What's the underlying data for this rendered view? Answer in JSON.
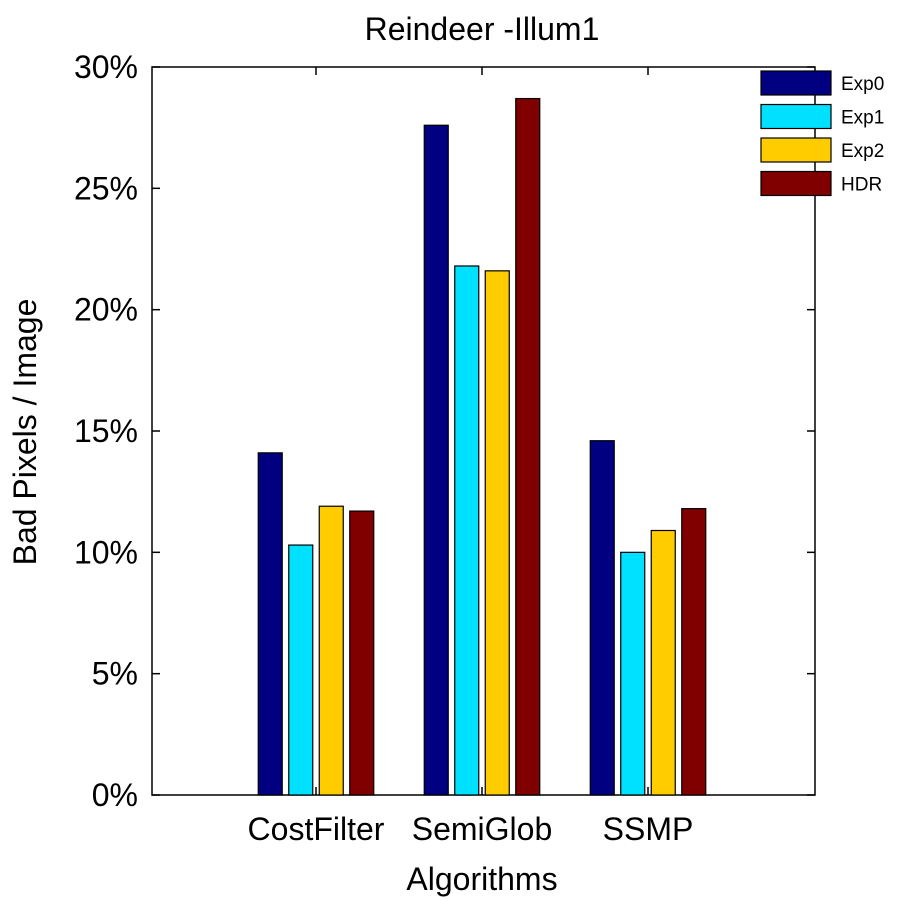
{
  "chart_data": {
    "type": "bar",
    "title": "Reindeer -Illum1",
    "xlabel": "Algorithms",
    "ylabel": "Bad Pixels / Image",
    "categories": [
      "CostFilter",
      "SemiGlob",
      "SSMP"
    ],
    "series": [
      {
        "name": "Exp0",
        "color": "#000080",
        "values": [
          14.1,
          27.6,
          14.6
        ]
      },
      {
        "name": "Exp1",
        "color": "#00e0ff",
        "values": [
          10.3,
          21.8,
          10.0
        ]
      },
      {
        "name": "Exp2",
        "color": "#ffcc00",
        "values": [
          11.9,
          21.6,
          10.9
        ]
      },
      {
        "name": "HDR",
        "color": "#800000",
        "values": [
          11.7,
          28.7,
          11.8
        ]
      }
    ],
    "ylim": [
      0,
      30
    ],
    "yticks": [
      0,
      5,
      10,
      15,
      20,
      25,
      30
    ],
    "ytick_labels": [
      "0%",
      "5%",
      "10%",
      "15%",
      "20%",
      "25%",
      "30%"
    ],
    "grid": false,
    "legend_position": "top-right"
  }
}
